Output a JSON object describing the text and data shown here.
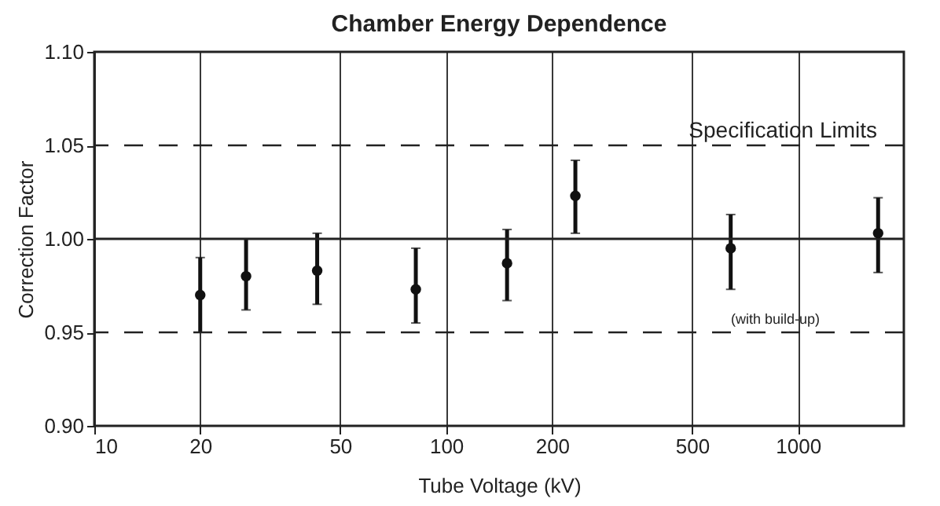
{
  "chart_data": {
    "type": "scatter",
    "title": "Chamber Energy Dependence",
    "xlabel": "Tube Voltage (kV)",
    "ylabel": "Correction Factor",
    "x": [
      20,
      27,
      43,
      82,
      149,
      233,
      644,
      1690
    ],
    "values": [
      0.97,
      0.98,
      0.983,
      0.973,
      0.987,
      1.023,
      0.995,
      1.003
    ],
    "errors": [
      [
        0.95,
        0.99
      ],
      [
        0.962,
        1.0
      ],
      [
        0.965,
        1.003
      ],
      [
        0.955,
        0.995
      ],
      [
        0.967,
        1.005
      ],
      [
        1.003,
        1.042
      ],
      [
        0.973,
        1.013
      ],
      [
        0.982,
        1.022
      ]
    ],
    "color": "#111111",
    "marker": "circle",
    "log": "x",
    "xlim": [
      10,
      2000
    ],
    "xticks": [
      10,
      20,
      50,
      100,
      200,
      500,
      1000
    ],
    "ylim": [
      0.9,
      1.1
    ],
    "yticks": [
      {
        "value": 0.9,
        "label": "0.90"
      },
      {
        "value": 0.95,
        "label": "0.95"
      },
      {
        "value": 1.0,
        "label": "1.00"
      },
      {
        "value": 1.05,
        "label": "1.05"
      },
      {
        "value": 1.1,
        "label": "1.10"
      }
    ],
    "grid": "x",
    "ref_lines": [
      {
        "axis": "y",
        "value": 1.0,
        "line_style": "solid"
      },
      {
        "axis": "y",
        "value": 1.05,
        "line_style": "dashed",
        "label": "Specification Limits"
      },
      {
        "axis": "y",
        "value": 0.95,
        "line_style": "dashed"
      }
    ],
    "annotations": [
      "(with build-up)"
    ]
  }
}
